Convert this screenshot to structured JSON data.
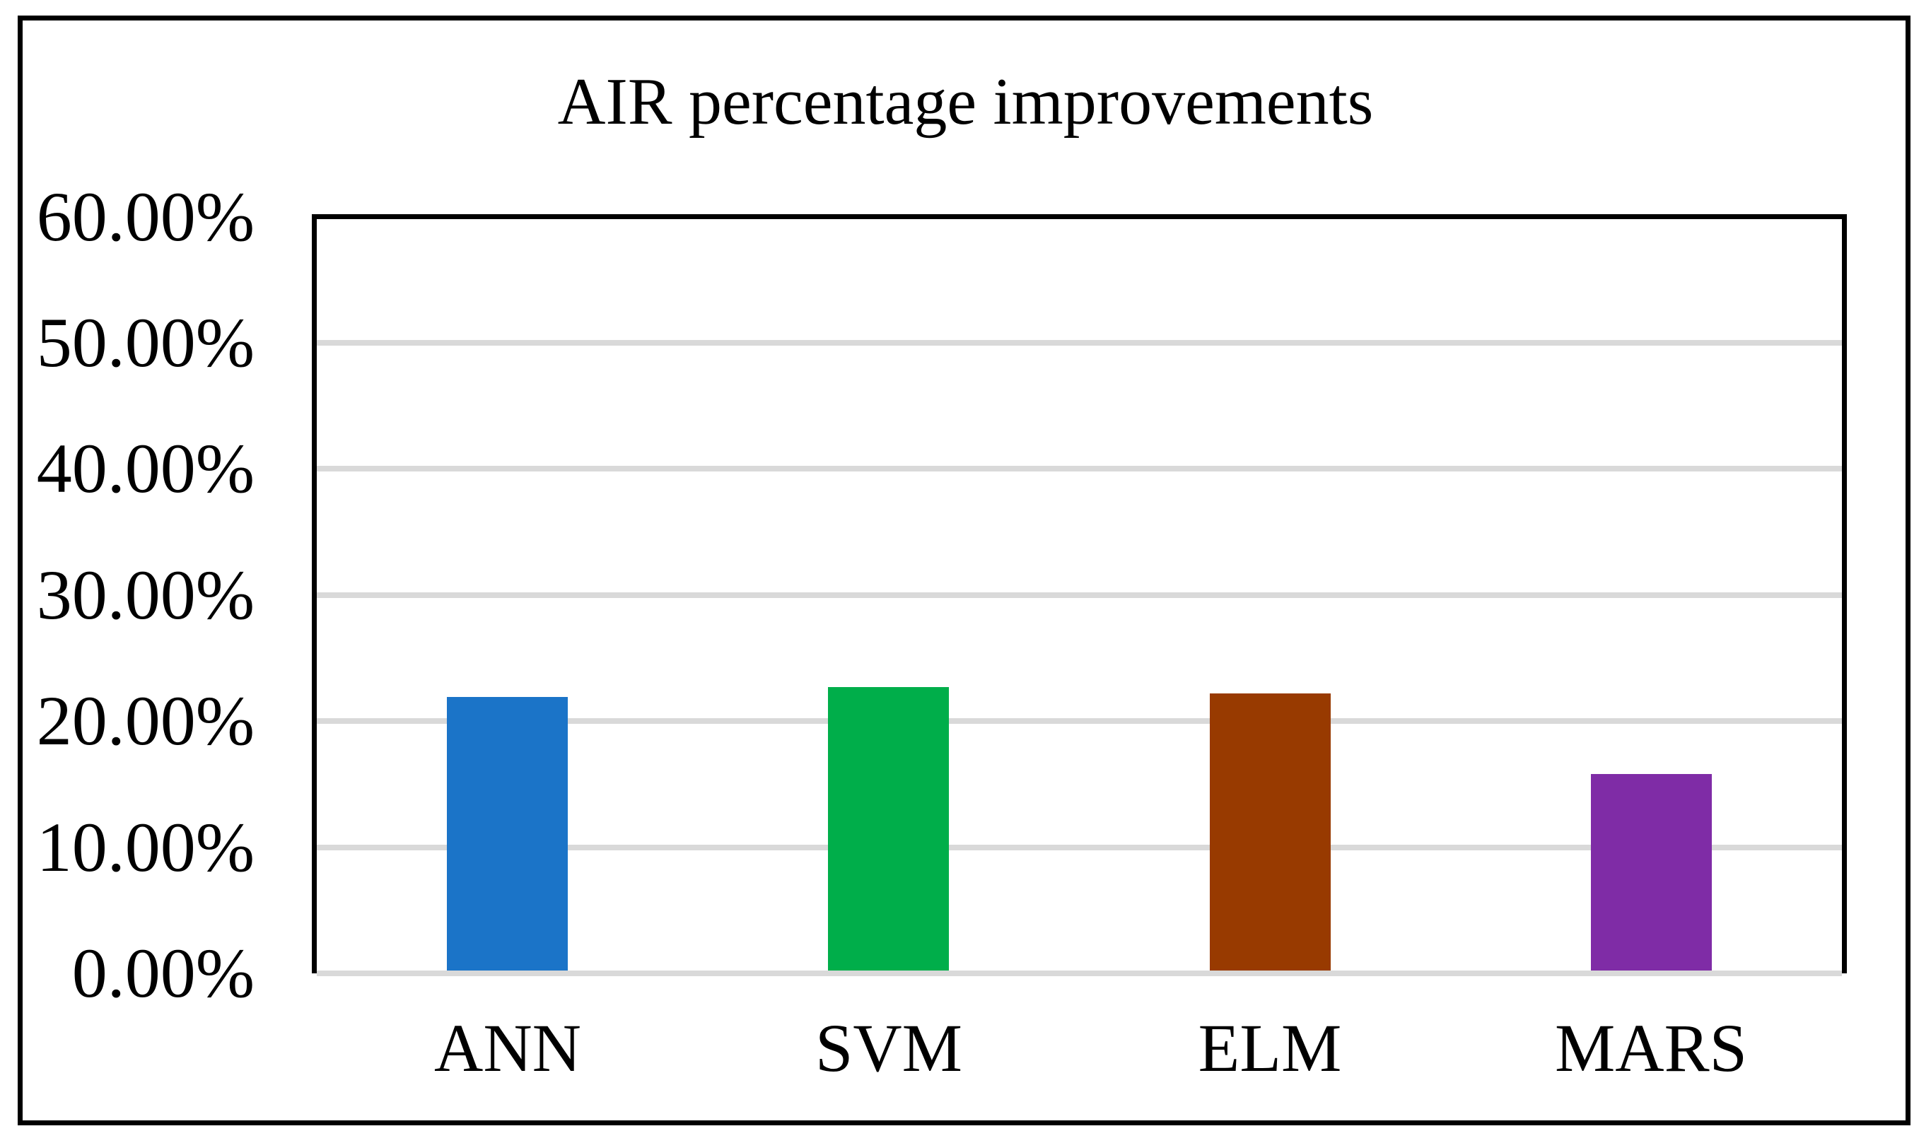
{
  "title": "AIR percentage improvements",
  "chart_data": {
    "type": "bar",
    "title": "AIR percentage improvements",
    "categories": [
      "ANN",
      "SVM",
      "ELM",
      "MARS"
    ],
    "values": [
      21.9,
      22.7,
      22.2,
      15.8
    ],
    "unit": "%",
    "ylabel": "",
    "xlabel": "",
    "ylim": [
      0,
      60
    ],
    "ytick_step": 10,
    "ytick_labels": [
      "0.00%",
      "10.00%",
      "20.00%",
      "30.00%",
      "40.00%",
      "50.00%",
      "60.00%"
    ],
    "bar_colors": [
      "#1B74C8",
      "#00AE4A",
      "#983A00",
      "#7F2CA6"
    ],
    "gridline_color": "#D9D9D9",
    "axis_color": "#000000",
    "grid": true,
    "legend_position": "none"
  }
}
